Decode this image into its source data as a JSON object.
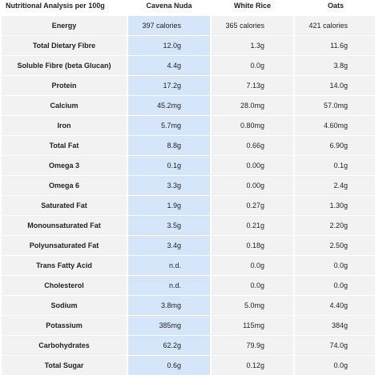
{
  "table": {
    "headers": [
      "Nutritional Analysis per 100g",
      "Cavena Nuda",
      "White Rice",
      "Oats"
    ],
    "rows": [
      {
        "label": "Energy",
        "values": [
          "397 calories",
          "365 calories",
          "421 calories"
        ]
      },
      {
        "label": "Total Dietary Fibre",
        "values": [
          "12.0g",
          "1.3g",
          "11.6g"
        ]
      },
      {
        "label": "Soluble Fibre (beta Glucan)",
        "values": [
          "4.4g",
          "0.0g",
          "3.8g"
        ]
      },
      {
        "label": "Protein",
        "values": [
          "17.2g",
          "7.13g",
          "14.0g"
        ]
      },
      {
        "label": "Calcium",
        "values": [
          "45.2mg",
          "28.0mg",
          "57.0mg"
        ]
      },
      {
        "label": "Iron",
        "values": [
          "5.7mg",
          "0.80mg",
          "4.60mg"
        ]
      },
      {
        "label": "Total Fat",
        "values": [
          "8.8g",
          "0.66g",
          "6.90g"
        ]
      },
      {
        "label": "Omega 3",
        "values": [
          "0.1g",
          "0.00g",
          "0.1g"
        ]
      },
      {
        "label": "Omega 6",
        "values": [
          "3.3g",
          "0.00g",
          "2.4g"
        ]
      },
      {
        "label": "Saturated Fat",
        "values": [
          "1.9g",
          "0.27g",
          "1.30g"
        ]
      },
      {
        "label": "Monounsaturated Fat",
        "values": [
          "3.5g",
          "0.21g",
          "2.20g"
        ]
      },
      {
        "label": "Polyunsaturated Fat",
        "values": [
          "3.4g",
          "0.18g",
          "2.50g"
        ]
      },
      {
        "label": "Trans Fatty Acid",
        "values": [
          "n.d.",
          "0.0g",
          "0.0g"
        ]
      },
      {
        "label": "Cholesterol",
        "values": [
          "n.d.",
          "0.0g",
          "0.0g"
        ]
      },
      {
        "label": "Sodium",
        "values": [
          "3.8mg",
          "5.0mg",
          "4.40g"
        ]
      },
      {
        "label": "Potassium",
        "values": [
          "385mg",
          "115mg",
          "384g"
        ]
      },
      {
        "label": "Carbohydrates",
        "values": [
          "62.2g",
          "79.9g",
          "74.0g"
        ]
      },
      {
        "label": "Total Sugar",
        "values": [
          "0.6g",
          "0.12g",
          "0.0g"
        ]
      }
    ]
  },
  "colors": {
    "highlight_column": "#d6e6fa",
    "cell_background": "#f2f2f2"
  }
}
